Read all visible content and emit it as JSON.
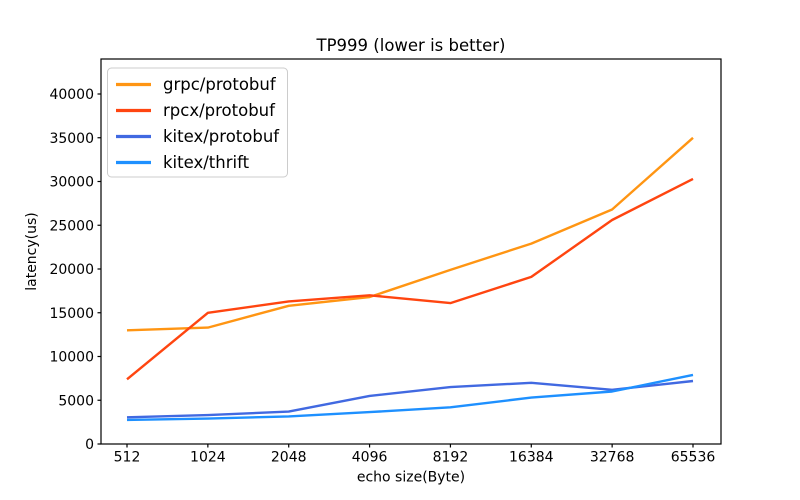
{
  "figure": {
    "background": "#ffffff"
  },
  "chart_data": {
    "type": "line",
    "title": "TP999 (lower is better)",
    "xlabel": "echo size(Byte)",
    "ylabel": "latency(us)",
    "categories": [
      "512",
      "1024",
      "2048",
      "4096",
      "8192",
      "16384",
      "32768",
      "65536"
    ],
    "series": [
      {
        "name": "grpc/protobuf",
        "color": "#ff9513",
        "values": [
          13000,
          13300,
          15800,
          16800,
          19900,
          22900,
          26800,
          35000
        ]
      },
      {
        "name": "rpcx/protobuf",
        "color": "#ff4510",
        "values": [
          7400,
          15000,
          16300,
          17000,
          16100,
          19100,
          25600,
          30300
        ]
      },
      {
        "name": "kitex/protobuf",
        "color": "#4169e1",
        "values": [
          3050,
          3300,
          3700,
          5500,
          6500,
          7000,
          6200,
          7200
        ]
      },
      {
        "name": "kitex/thrift",
        "color": "#1e90ff",
        "values": [
          2750,
          2900,
          3150,
          3650,
          4200,
          5300,
          6000,
          7900
        ]
      }
    ],
    "ylim": [
      0,
      44000
    ],
    "yticks": [
      0,
      5000,
      10000,
      15000,
      20000,
      25000,
      30000,
      35000,
      40000
    ],
    "grid": false,
    "legend": {
      "position": "upper left",
      "entries": [
        "grpc/protobuf",
        "rpcx/protobuf",
        "kitex/protobuf",
        "kitex/thrift"
      ]
    },
    "axis_color": "#000000",
    "text_color": "#000000"
  }
}
